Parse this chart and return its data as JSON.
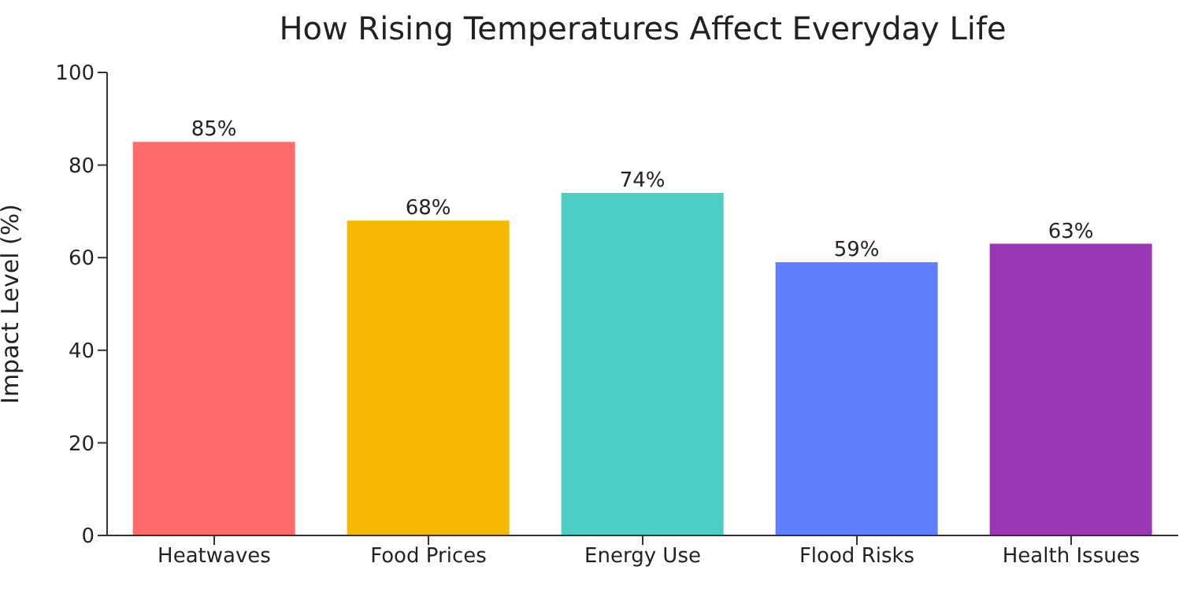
{
  "chart_data": {
    "type": "bar",
    "title": "How Rising Temperatures Affect Everyday Life",
    "ylabel": "Impact Level (%)",
    "categories": [
      "Heatwaves",
      "Food Prices",
      "Energy Use",
      "Flood Risks",
      "Health Issues"
    ],
    "values": [
      85,
      68,
      74,
      59,
      63
    ],
    "colors": [
      "#ff6b6b",
      "#f7b801",
      "#4ecdc4",
      "#5f7fff",
      "#9b36b5"
    ],
    "value_labels": [
      "85%",
      "68%",
      "74%",
      "59%",
      "63%"
    ],
    "ylim": [
      0,
      100
    ],
    "yticks": [
      0,
      20,
      40,
      60,
      80,
      100
    ],
    "grid": false
  }
}
